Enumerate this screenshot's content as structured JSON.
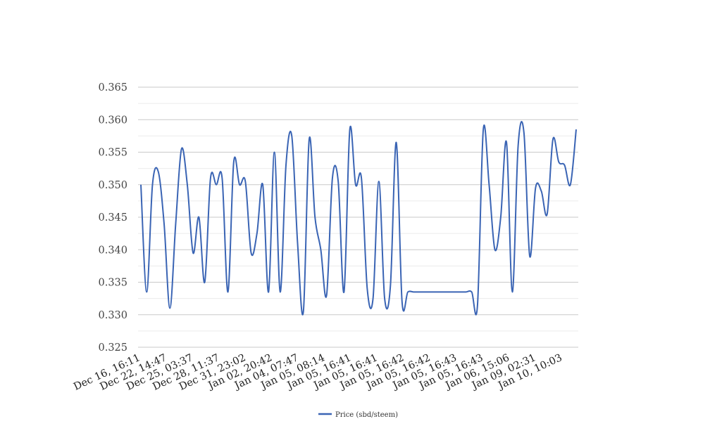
{
  "chart_data": {
    "type": "line",
    "title": "",
    "xlabel": "",
    "ylabel": "",
    "ylim": [
      0.325,
      0.365
    ],
    "yticks": [
      "0.325",
      "0.330",
      "0.335",
      "0.340",
      "0.345",
      "0.350",
      "0.355",
      "0.360",
      "0.365"
    ],
    "grid": true,
    "legend_position": "bottom",
    "colors": {
      "line": "#3a64b4",
      "grid_major": "#c9c9c9",
      "grid_minor": "#ebebeb"
    },
    "xtick_labels": [
      "Dec 16, 16:11",
      "Dec 22, 14:47",
      "Dec 25, 03:37",
      "Dec 28, 11:37",
      "Dec 31, 23:02",
      "Jan 02, 20:42",
      "Jan 04, 07:47",
      "Jan 05, 08:14",
      "Jan 05, 16:41",
      "Jan 05, 16:41",
      "Jan 05, 16:42",
      "Jan 05, 16:42",
      "Jan 05, 16:43",
      "Jan 05, 16:43",
      "Jan 06, 15:06",
      "Jan 09, 02:31",
      "Jan 10, 10:03"
    ],
    "series": [
      {
        "name": "Price (sbd/steem)",
        "values": [
          0.35,
          0.3335,
          0.35,
          0.352,
          0.344,
          0.331,
          0.344,
          0.3555,
          0.35,
          0.3395,
          0.345,
          0.335,
          0.351,
          0.35,
          0.351,
          0.3335,
          0.3535,
          0.35,
          0.3505,
          0.3395,
          0.3425,
          0.35,
          0.3335,
          0.355,
          0.3335,
          0.353,
          0.3575,
          0.341,
          0.3305,
          0.357,
          0.345,
          0.34,
          0.333,
          0.351,
          0.3505,
          0.3335,
          0.3585,
          0.35,
          0.351,
          0.334,
          0.3325,
          0.3505,
          0.3325,
          0.3345,
          0.3565,
          0.332,
          0.3335,
          0.3335,
          0.3335,
          0.3335,
          0.3335,
          0.3335,
          0.3335,
          0.3335,
          0.3335,
          0.3335,
          0.3335,
          0.3335,
          0.3315,
          0.3585,
          0.35,
          0.34,
          0.345,
          0.3565,
          0.3335,
          0.356,
          0.358,
          0.339,
          0.3495,
          0.349,
          0.3455,
          0.357,
          0.3535,
          0.353,
          0.35,
          0.3585
        ]
      }
    ]
  }
}
